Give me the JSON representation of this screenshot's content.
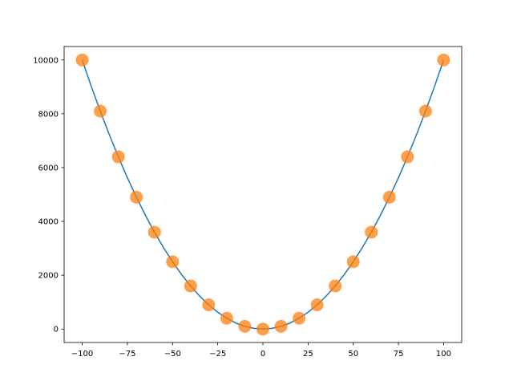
{
  "chart_data": {
    "type": "line",
    "series": [
      {
        "type": "line",
        "color": "#1f77b4",
        "x": [
          -100,
          -95,
          -90,
          -85,
          -80,
          -75,
          -70,
          -65,
          -60,
          -55,
          -50,
          -45,
          -40,
          -35,
          -30,
          -25,
          -20,
          -15,
          -10,
          -5,
          0,
          5,
          10,
          15,
          20,
          25,
          30,
          35,
          40,
          45,
          50,
          55,
          60,
          65,
          70,
          75,
          80,
          85,
          90,
          95,
          100
        ],
        "values": [
          10000,
          9025,
          8100,
          7225,
          6400,
          5625,
          4900,
          4225,
          3600,
          3025,
          2500,
          2025,
          1600,
          1225,
          900,
          625,
          400,
          225,
          100,
          25,
          0,
          25,
          100,
          225,
          400,
          625,
          900,
          1225,
          1600,
          2025,
          2500,
          3025,
          3600,
          4225,
          4900,
          5625,
          6400,
          7225,
          8100,
          9025,
          10000
        ]
      },
      {
        "type": "scatter",
        "color": "#ff7f0e",
        "x": [
          -100,
          -90,
          -80,
          -70,
          -60,
          -50,
          -40,
          -30,
          -20,
          -10,
          0,
          10,
          20,
          30,
          40,
          50,
          60,
          70,
          80,
          90,
          100
        ],
        "values": [
          10000,
          8100,
          6400,
          4900,
          3600,
          2500,
          1600,
          900,
          400,
          100,
          0,
          100,
          400,
          900,
          1600,
          2500,
          3600,
          4900,
          6400,
          8100,
          10000
        ]
      }
    ],
    "xlim": [
      -110,
      110
    ],
    "ylim": [
      -500,
      10500
    ],
    "xticks": [
      {
        "value": -100,
        "label": "−100"
      },
      {
        "value": -75,
        "label": "−75"
      },
      {
        "value": -50,
        "label": "−50"
      },
      {
        "value": -25,
        "label": "−25"
      },
      0,
      25,
      50,
      75,
      100
    ],
    "yticks": [
      0,
      2000,
      4000,
      6000,
      8000,
      10000
    ],
    "grid": false
  }
}
